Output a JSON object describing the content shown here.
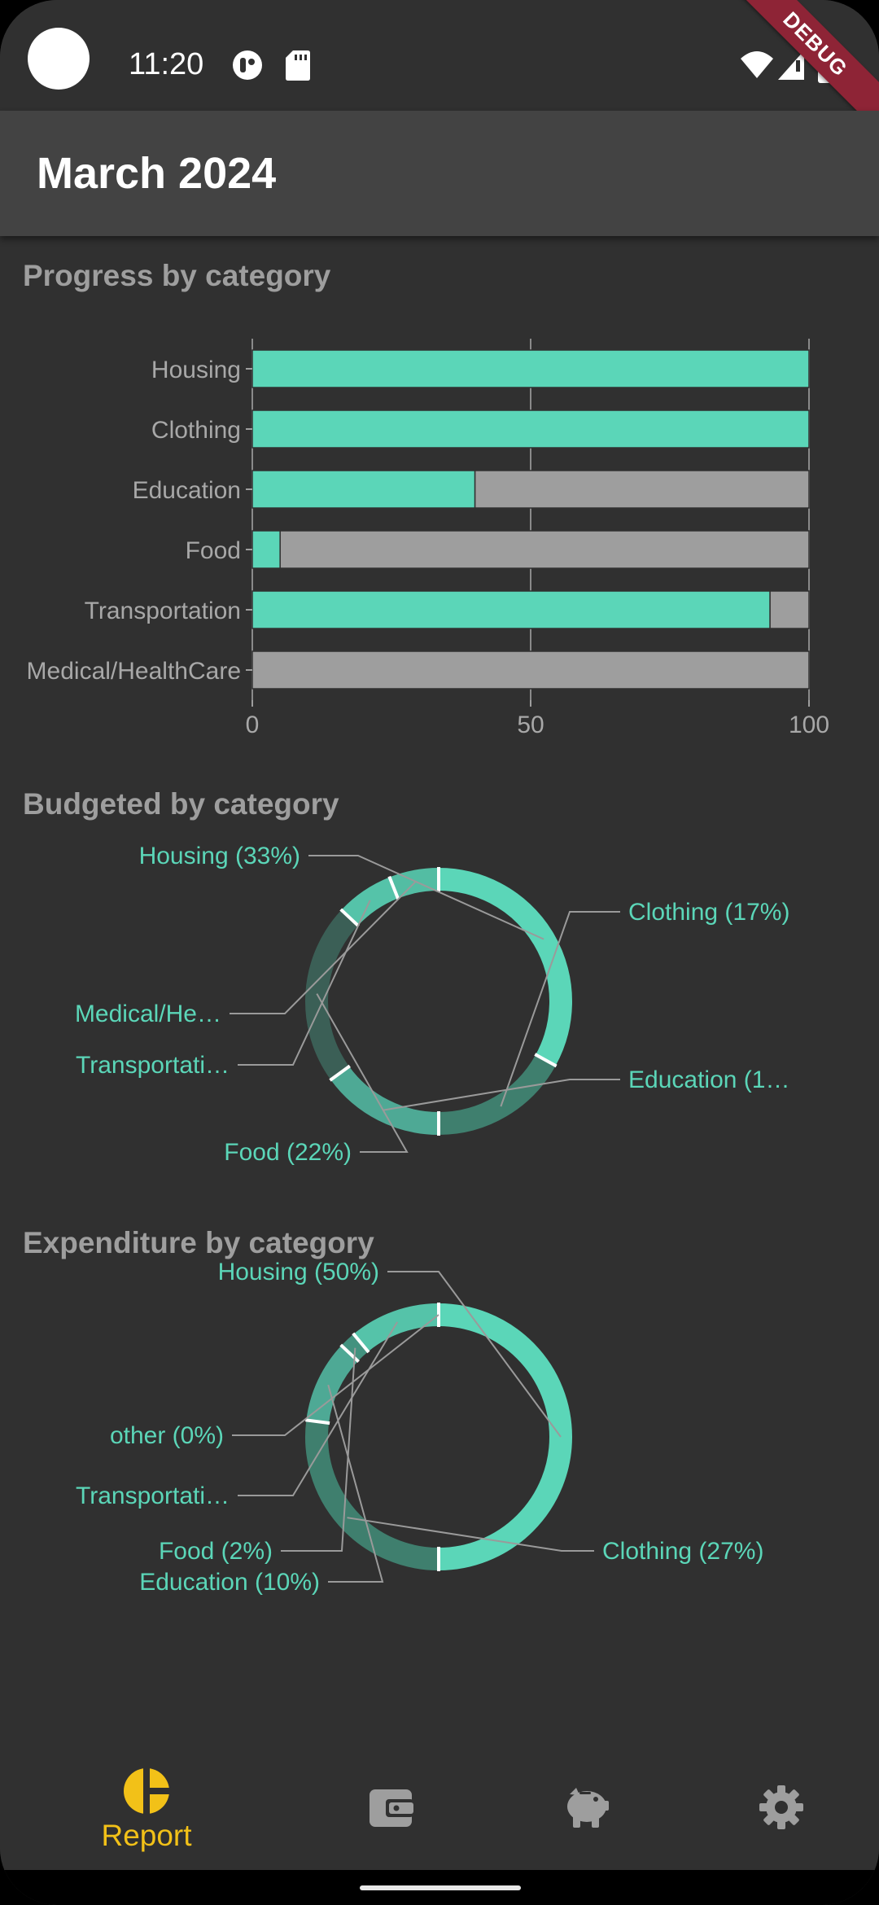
{
  "status_bar": {
    "time": "11:20",
    "debug_banner": "DEBUG"
  },
  "app_bar": {
    "title": "March 2024"
  },
  "progress_section": {
    "title": "Progress by category",
    "chart_data": {
      "type": "bar",
      "orientation": "horizontal",
      "stacked": true,
      "categories": [
        "Housing",
        "Clothing",
        "Education",
        "Food",
        "Transportation",
        "Medical/HealthCare"
      ],
      "series": [
        {
          "values": [
            100,
            100,
            40,
            5,
            93,
            0
          ]
        },
        {
          "values": [
            0,
            0,
            60,
            95,
            7,
            100
          ]
        }
      ],
      "xlim": [
        0,
        100
      ],
      "xticks": [
        "0",
        "50",
        "100"
      ],
      "grid": true,
      "colors": [
        "#5bd6b8",
        "#9e9e9e"
      ]
    }
  },
  "budget_section": {
    "title": "Budgeted by category",
    "chart_data": {
      "type": "pie",
      "donut": true,
      "labels": [
        "Housing (33%)",
        "Clothing (17%)",
        "Education (1…",
        "Food (22%)",
        "Transportati…",
        "Medical/He…"
      ],
      "values": [
        33,
        17,
        15,
        22,
        7,
        6
      ],
      "colors": [
        "#5bd6b8",
        "#3f7f6e",
        "#4ea995",
        "#3b5f56",
        "#55c3a9",
        "#53bda3"
      ]
    }
  },
  "expenditure_section": {
    "title": "Expenditure by category",
    "chart_data": {
      "type": "pie",
      "donut": true,
      "labels": [
        "Housing (50%)",
        "Clothing (27%)",
        "Education (10%)",
        "Food (2%)",
        "Transportati…",
        "other (0%)"
      ],
      "values": [
        50,
        27,
        10,
        2,
        11,
        0
      ],
      "colors": [
        "#5bd6b8",
        "#3f7f6e",
        "#4ea995",
        "#43927f",
        "#55c3a9",
        "#5bd6b8"
      ]
    }
  },
  "bottom_nav": {
    "items": [
      {
        "label": "Report",
        "icon": "report-pie-icon",
        "active": true
      },
      {
        "label": "",
        "icon": "wallet-icon",
        "active": false
      },
      {
        "label": "",
        "icon": "piggy-bank-icon",
        "active": false
      },
      {
        "label": "",
        "icon": "gear-icon",
        "active": false
      }
    ],
    "active_color": "#f2c118",
    "inactive_color": "#9e9e9e"
  },
  "theme": {
    "accent": "#5bd6b8",
    "background": "#303030",
    "app_bar": "#434343"
  }
}
